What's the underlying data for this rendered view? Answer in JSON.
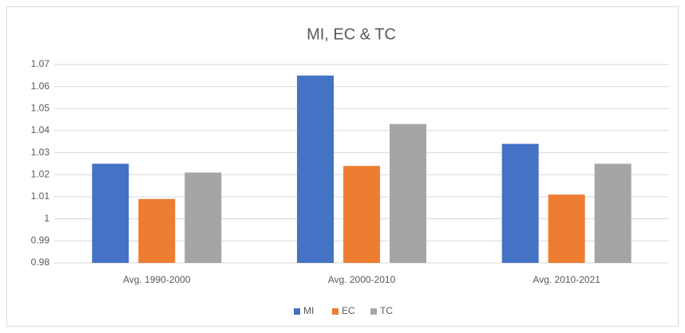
{
  "chart_data": {
    "type": "bar",
    "title": "MI, EC & TC",
    "categories": [
      "Avg. 1990-2000",
      "Avg. 2000-2010",
      "Avg. 2010-2021"
    ],
    "series": [
      {
        "name": "MI",
        "color": "#4472c4",
        "values": [
          1.025,
          1.065,
          1.034
        ]
      },
      {
        "name": "EC",
        "color": "#ed7d31",
        "values": [
          1.009,
          1.024,
          1.011
        ]
      },
      {
        "name": "TC",
        "color": "#a5a5a5",
        "values": [
          1.021,
          1.043,
          1.025
        ]
      }
    ],
    "ylim": [
      0.98,
      1.07
    ],
    "yticks": [
      0.98,
      0.99,
      1,
      1.01,
      1.02,
      1.03,
      1.04,
      1.05,
      1.06,
      1.07
    ],
    "grid": true,
    "legend": "bottom"
  }
}
